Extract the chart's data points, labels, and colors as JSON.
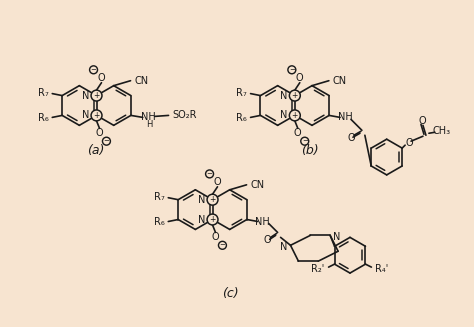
{
  "background_color": "#f7e4d0",
  "line_color": "#1a1a1a",
  "figsize": [
    4.74,
    3.27
  ],
  "dpi": 100,
  "label_a": "(a)",
  "label_b": "(b)",
  "label_c": "(c)"
}
